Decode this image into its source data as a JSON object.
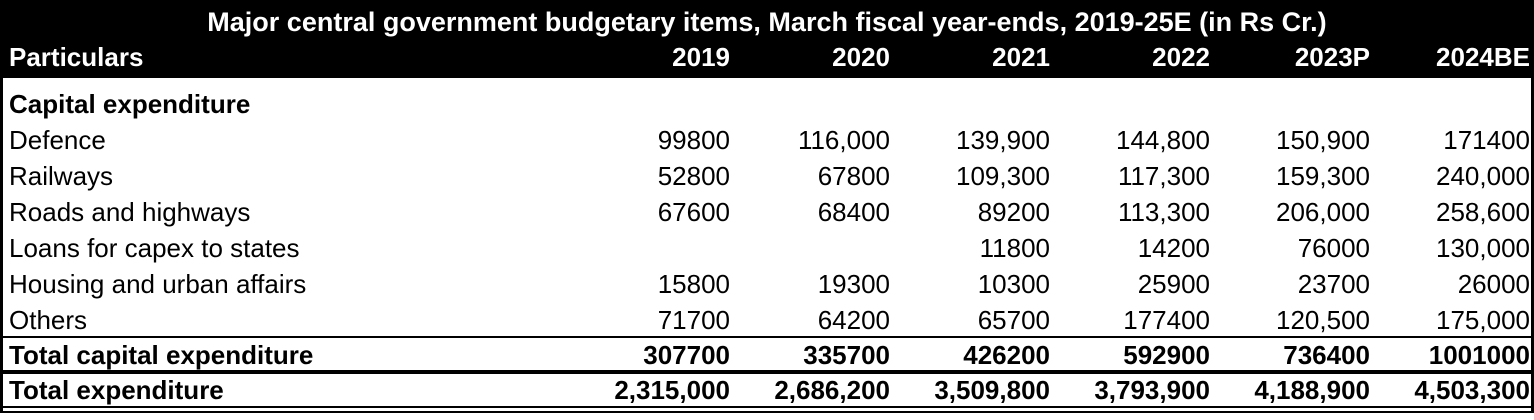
{
  "title": "Major central government budgetary items, March fiscal year-ends, 2019-25E (in Rs Cr.)",
  "header": {
    "particulars": "Particulars",
    "years": [
      "2019",
      "2020",
      "2021",
      "2022",
      "2023P",
      "2024BE"
    ]
  },
  "section_heading": "Capital expenditure",
  "rows": [
    {
      "label": "Defence",
      "values": [
        "99800",
        "116,000",
        "139,900",
        "144,800",
        "150,900",
        "171400"
      ]
    },
    {
      "label": "Railways",
      "values": [
        "52800",
        "67800",
        "109,300",
        "117,300",
        "159,300",
        "240,000"
      ]
    },
    {
      "label": "Roads and highways",
      "values": [
        "67600",
        "68400",
        "89200",
        "113,300",
        "206,000",
        "258,600"
      ]
    },
    {
      "label": "Loans for capex to states",
      "values": [
        "",
        "",
        "11800",
        "14200",
        "76000",
        "130,000"
      ]
    },
    {
      "label": "Housing and urban affairs",
      "values": [
        "15800",
        "19300",
        "10300",
        "25900",
        "23700",
        "26000"
      ]
    },
    {
      "label": "Others",
      "values": [
        "71700",
        "64200",
        "65700",
        "177400",
        "120,500",
        "175,000"
      ]
    }
  ],
  "total_capex": {
    "label": "Total capital expenditure",
    "values": [
      "307700",
      "335700",
      "426200",
      "592900",
      "736400",
      "1001000"
    ]
  },
  "total_exp": {
    "label": "Total expenditure",
    "values": [
      "2,315,000",
      "2,686,200",
      "3,509,800",
      "3,793,900",
      "4,188,900",
      "4,503,300"
    ]
  }
}
